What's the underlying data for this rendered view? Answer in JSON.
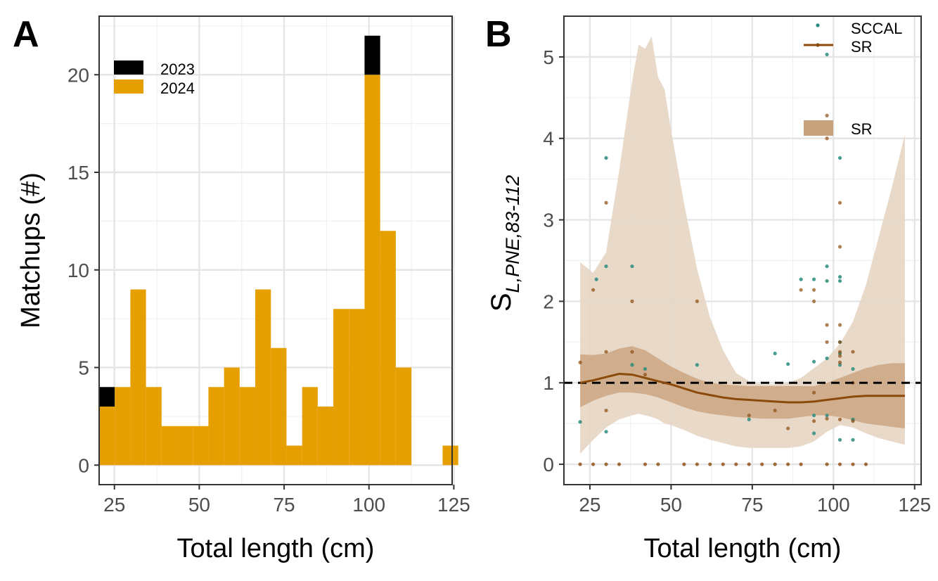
{
  "colors": {
    "y2023": "#000000",
    "y2024": "#E69F00",
    "sccal": "#2A8C7E",
    "sr": "#8B4A0B",
    "sr_band": "#C9A27E",
    "sr_band_outer": "#E6D5C3",
    "reference": "#000000"
  },
  "chart_data": [
    {
      "panel": "A",
      "type": "bar",
      "stacked": true,
      "xlabel": "Total length (cm)",
      "ylabel": "Matchups (#)",
      "xlim": [
        20.5,
        124.5
      ],
      "ylim": [
        -1,
        23
      ],
      "xticks": [
        25,
        50,
        75,
        100,
        125
      ],
      "yticks": [
        0,
        5,
        10,
        15,
        20
      ],
      "bin_width": 4.6,
      "legend_position": "top-left",
      "bins": [
        22.8,
        27.4,
        32.0,
        36.6,
        41.2,
        45.8,
        50.4,
        55.0,
        59.6,
        64.2,
        68.8,
        73.4,
        78.0,
        82.6,
        87.2,
        91.8,
        96.4,
        101.0,
        105.6,
        110.2,
        114.8,
        119.4,
        124.0
      ],
      "series": [
        {
          "name": "2023",
          "values": [
            1,
            0,
            0,
            0,
            0,
            0,
            0,
            0,
            0,
            0,
            0,
            0,
            0,
            0,
            0,
            0,
            0,
            2,
            0,
            0,
            0,
            0,
            0
          ]
        },
        {
          "name": "2024",
          "values": [
            3,
            4,
            9,
            4,
            2,
            2,
            2,
            4,
            5,
            4,
            9,
            6,
            1,
            4,
            3,
            8,
            8,
            20,
            12,
            5,
            0,
            0,
            1
          ]
        }
      ]
    },
    {
      "panel": "B",
      "type": "scatter",
      "xlabel": "Total length (cm)",
      "ylabel_main": "S",
      "ylabel_sub": "L,PNE,83-112",
      "xlim": [
        17,
        127
      ],
      "ylim": [
        -0.25,
        5.5
      ],
      "xticks": [
        25,
        50,
        75,
        100,
        125
      ],
      "yticks": [
        0,
        1,
        2,
        3,
        4,
        5
      ],
      "reference_line": 1,
      "legend_position": "top-right",
      "legend": {
        "points": "SCCAL",
        "line": "SR",
        "band": "SR"
      },
      "series": [
        {
          "name": "SCCAL",
          "kind": "points",
          "points": [
            [
              22,
              0.52
            ],
            [
              27,
              2.27
            ],
            [
              30,
              3.76
            ],
            [
              30,
              2.43
            ],
            [
              30,
              0.4
            ],
            [
              38,
              2.43
            ],
            [
              38,
              1.22
            ],
            [
              42,
              1.17
            ],
            [
              58,
              1.22
            ],
            [
              74,
              0.55
            ],
            [
              82,
              1.36
            ],
            [
              86,
              1.23
            ],
            [
              90,
              2.27
            ],
            [
              94,
              2.27
            ],
            [
              94,
              1.26
            ],
            [
              94,
              0.6
            ],
            [
              94,
              0.38
            ],
            [
              98,
              2.43
            ],
            [
              98,
              2.25
            ],
            [
              98,
              5.03
            ],
            [
              98,
              1.3
            ],
            [
              98,
              0.6
            ],
            [
              102,
              3.76
            ],
            [
              102,
              2.3
            ],
            [
              102,
              2.25
            ],
            [
              102,
              1.5
            ],
            [
              102,
              1.36
            ],
            [
              102,
              1.22
            ],
            [
              102,
              0.3
            ],
            [
              106,
              1.17
            ],
            [
              106,
              0.55
            ],
            [
              106,
              0.3
            ]
          ]
        },
        {
          "name": "SR",
          "kind": "points",
          "points": [
            [
              22,
              1.25
            ],
            [
              26,
              2.14
            ],
            [
              30,
              3.21
            ],
            [
              30,
              1.38
            ],
            [
              30,
              0.66
            ],
            [
              38,
              2.0
            ],
            [
              38,
              1.38
            ],
            [
              42,
              1.1
            ],
            [
              58,
              2.0
            ],
            [
              74,
              0.6
            ],
            [
              82,
              0.66
            ],
            [
              86,
              0.44
            ],
            [
              90,
              2.14
            ],
            [
              94,
              2.14
            ],
            [
              94,
              2.0
            ],
            [
              94,
              0.88
            ],
            [
              94,
              0.53
            ],
            [
              98,
              4.28
            ],
            [
              98,
              4.0
            ],
            [
              98,
              1.71
            ],
            [
              98,
              1.5
            ],
            [
              98,
              0.56
            ],
            [
              102,
              3.21
            ],
            [
              102,
              2.67
            ],
            [
              102,
              1.71
            ],
            [
              102,
              1.5
            ],
            [
              102,
              1.38
            ],
            [
              102,
              1.33
            ],
            [
              102,
              1.25
            ],
            [
              102,
              0.55
            ],
            [
              106,
              1.38
            ],
            [
              106,
              1.0
            ],
            [
              106,
              0.53
            ]
          ]
        },
        {
          "name": "SR",
          "kind": "zeros",
          "x": [
            22,
            26,
            30,
            34,
            42,
            46,
            54,
            58,
            62,
            66,
            70,
            74,
            78,
            82,
            86,
            90,
            98,
            102,
            106,
            110
          ],
          "y": 0
        },
        {
          "name": "SR",
          "kind": "line",
          "x": [
            22,
            26,
            30,
            34,
            38,
            42,
            46,
            50,
            54,
            58,
            62,
            66,
            70,
            74,
            78,
            82,
            86,
            90,
            94,
            98,
            102,
            106,
            110,
            114,
            118,
            122
          ],
          "y": [
            1.0,
            1.03,
            1.07,
            1.11,
            1.1,
            1.06,
            1.02,
            0.98,
            0.93,
            0.88,
            0.85,
            0.82,
            0.8,
            0.79,
            0.78,
            0.77,
            0.76,
            0.76,
            0.77,
            0.79,
            0.81,
            0.83,
            0.84,
            0.84,
            0.84,
            0.84
          ]
        },
        {
          "name": "SR",
          "kind": "band",
          "x": [
            22,
            26,
            30,
            34,
            38,
            42,
            46,
            50,
            54,
            58,
            62,
            66,
            70,
            74,
            78,
            82,
            86,
            90,
            94,
            98,
            102,
            106,
            110,
            114,
            118,
            122
          ],
          "lower": [
            0.7,
            0.78,
            0.84,
            0.88,
            0.88,
            0.86,
            0.82,
            0.76,
            0.7,
            0.65,
            0.62,
            0.6,
            0.58,
            0.57,
            0.56,
            0.56,
            0.56,
            0.58,
            0.6,
            0.6,
            0.58,
            0.54,
            0.5,
            0.48,
            0.46,
            0.44
          ],
          "upper": [
            1.35,
            1.34,
            1.36,
            1.42,
            1.45,
            1.4,
            1.3,
            1.2,
            1.12,
            1.05,
            1.0,
            0.98,
            0.97,
            0.96,
            0.96,
            0.96,
            0.96,
            0.96,
            0.96,
            1.0,
            1.06,
            1.12,
            1.18,
            1.22,
            1.24,
            1.24
          ]
        },
        {
          "name": "SR",
          "kind": "band",
          "x": [
            22,
            26,
            30,
            34,
            38,
            40,
            42,
            44,
            46,
            48,
            50,
            54,
            58,
            62,
            66,
            70,
            74,
            78,
            82,
            86,
            90,
            94,
            98,
            102,
            106,
            110,
            114,
            118,
            122
          ],
          "lower": [
            0.13,
            0.3,
            0.45,
            0.55,
            0.6,
            0.62,
            0.6,
            0.58,
            0.55,
            0.5,
            0.48,
            0.42,
            0.35,
            0.3,
            0.26,
            0.22,
            0.2,
            0.2,
            0.2,
            0.2,
            0.22,
            0.28,
            0.4,
            0.48,
            0.45,
            0.38,
            0.32,
            0.28,
            0.24
          ],
          "upper": [
            2.48,
            2.35,
            2.6,
            3.6,
            4.7,
            5.15,
            5.1,
            5.25,
            4.75,
            4.6,
            4.1,
            3.2,
            2.4,
            1.8,
            1.4,
            1.12,
            1.02,
            0.98,
            0.98,
            1.0,
            1.06,
            1.18,
            1.3,
            1.48,
            1.75,
            2.2,
            2.8,
            3.4,
            4.05
          ]
        }
      ]
    }
  ]
}
